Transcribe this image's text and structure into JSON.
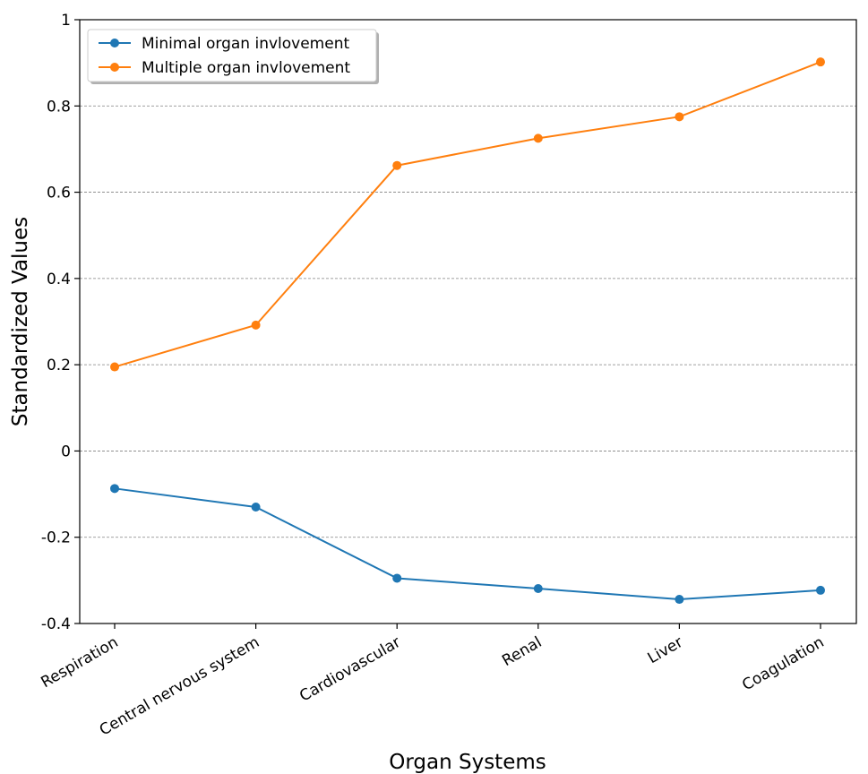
{
  "chart_data": {
    "type": "line",
    "title": "",
    "xlabel": "Organ Systems",
    "ylabel": "Standardized Values",
    "categories": [
      "Respiration",
      "Central nervous system",
      "Cardiovascular",
      "Renal",
      "Liver",
      "Coagulation"
    ],
    "ylim": [
      -0.4,
      1.0
    ],
    "yticks": [
      -0.4,
      -0.2,
      0,
      0.2,
      0.4,
      0.6,
      0.8,
      1
    ],
    "ytick_labels": [
      "-0.4",
      "-0.2",
      "0",
      "0.2",
      "0.4",
      "0.6",
      "0.8",
      "1"
    ],
    "grid": "horizontal dashed",
    "legend_position": "upper-left",
    "series": [
      {
        "name": "Minimal organ invlovement",
        "color": "#1f77b4",
        "values": [
          -0.087,
          -0.13,
          -0.295,
          -0.319,
          -0.344,
          -0.323
        ]
      },
      {
        "name": "Multiple organ invlovement",
        "color": "#ff7f0e",
        "values": [
          0.195,
          0.292,
          0.662,
          0.725,
          0.775,
          0.902
        ]
      }
    ]
  }
}
